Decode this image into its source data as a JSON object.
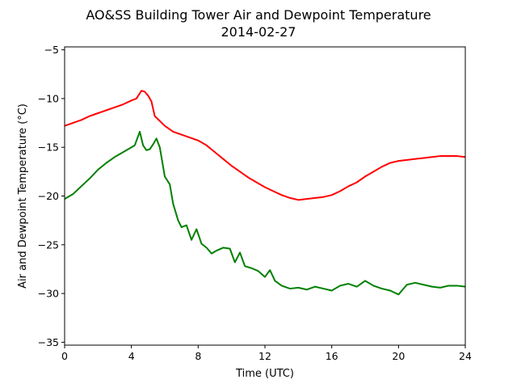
{
  "chart_data": {
    "type": "line",
    "title": "AO&SS Building Tower Air and Dewpoint Temperature",
    "subtitle": "2014-02-27",
    "xlabel": "Time (UTC)",
    "ylabel": "Air and Dewpoint Temperature (°C)",
    "xlim": [
      0,
      24
    ],
    "ylim": [
      -35.3,
      -4.7
    ],
    "xticks": [
      0,
      4,
      8,
      12,
      16,
      20,
      24
    ],
    "yticks": [
      -35,
      -30,
      -25,
      -20,
      -15,
      -10,
      -5
    ],
    "grid": false,
    "legend": "none",
    "series": [
      {
        "color": "#ff0000",
        "x": [
          0,
          0.5,
          1,
          1.5,
          2,
          2.5,
          3,
          3.5,
          4,
          4.3,
          4.6,
          4.8,
          5.0,
          5.2,
          5.4,
          5.7,
          6,
          6.5,
          7,
          7.5,
          8,
          8.5,
          9,
          9.5,
          10,
          10.5,
          11,
          11.5,
          12,
          12.5,
          13,
          13.5,
          14,
          14.5,
          15,
          15.5,
          16,
          16.5,
          17,
          17.5,
          18,
          18.5,
          19,
          19.5,
          20,
          20.5,
          21,
          21.5,
          22,
          22.5,
          23,
          23.5,
          24
        ],
        "y": [
          -12.8,
          -12.5,
          -12.2,
          -11.8,
          -11.5,
          -11.2,
          -10.9,
          -10.6,
          -10.2,
          -10.0,
          -9.2,
          -9.3,
          -9.7,
          -10.3,
          -11.8,
          -12.3,
          -12.8,
          -13.4,
          -13.7,
          -14.0,
          -14.3,
          -14.8,
          -15.5,
          -16.2,
          -16.9,
          -17.5,
          -18.1,
          -18.6,
          -19.1,
          -19.5,
          -19.9,
          -20.2,
          -20.4,
          -20.3,
          -20.2,
          -20.1,
          -19.9,
          -19.5,
          -19.0,
          -18.6,
          -18.0,
          -17.5,
          -17.0,
          -16.6,
          -16.4,
          -16.3,
          -16.2,
          -16.1,
          -16.0,
          -15.9,
          -15.9,
          -15.9,
          -16.0
        ]
      },
      {
        "color": "#008000",
        "x": [
          0,
          0.5,
          1,
          1.5,
          2,
          2.5,
          3,
          3.5,
          4,
          4.2,
          4.5,
          4.7,
          4.9,
          5.1,
          5.3,
          5.5,
          5.7,
          6.0,
          6.3,
          6.5,
          6.8,
          7.0,
          7.3,
          7.6,
          7.9,
          8.2,
          8.5,
          8.8,
          9.1,
          9.5,
          9.9,
          10.2,
          10.5,
          10.8,
          11.2,
          11.6,
          12,
          12.3,
          12.6,
          13,
          13.5,
          14,
          14.5,
          15,
          15.5,
          16,
          16.5,
          17,
          17.5,
          18,
          18.5,
          19,
          19.5,
          20,
          20.5,
          21,
          21.5,
          22,
          22.5,
          23,
          23.5,
          24
        ],
        "y": [
          -20.3,
          -19.8,
          -19.0,
          -18.2,
          -17.3,
          -16.6,
          -16.0,
          -15.5,
          -15.0,
          -14.8,
          -13.4,
          -14.8,
          -15.3,
          -15.2,
          -14.7,
          -14.1,
          -15.0,
          -18.0,
          -18.8,
          -20.8,
          -22.5,
          -23.2,
          -23.0,
          -24.5,
          -23.4,
          -24.9,
          -25.3,
          -25.9,
          -25.6,
          -25.3,
          -25.4,
          -26.8,
          -25.8,
          -27.2,
          -27.4,
          -27.7,
          -28.3,
          -27.6,
          -28.7,
          -29.2,
          -29.5,
          -29.4,
          -29.6,
          -29.3,
          -29.5,
          -29.7,
          -29.2,
          -29.0,
          -29.3,
          -28.7,
          -29.2,
          -29.5,
          -29.7,
          -30.1,
          -29.1,
          -28.9,
          -29.1,
          -29.3,
          -29.4,
          -29.2,
          -29.2,
          -29.3
        ]
      }
    ]
  }
}
